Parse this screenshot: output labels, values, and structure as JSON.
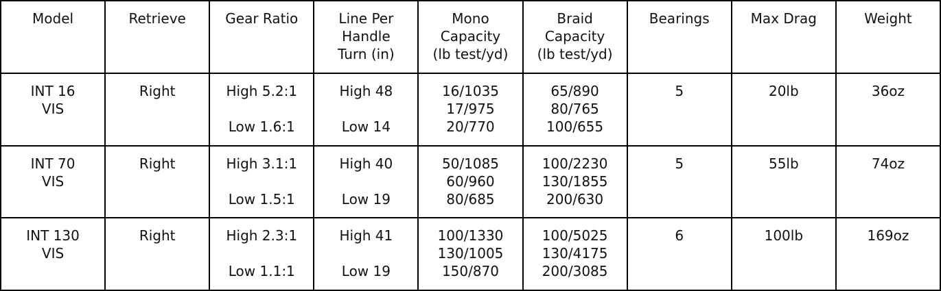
{
  "table": {
    "header": [
      [
        "Model"
      ],
      [
        "Retrieve"
      ],
      [
        "Gear Ratio"
      ],
      [
        "Line Per",
        "Handle",
        "Turn (in)"
      ],
      [
        "Mono",
        "Capacity",
        "(lb test/yd)"
      ],
      [
        "Braid",
        "Capacity",
        "(lb test/yd)"
      ],
      [
        "Bearings"
      ],
      [
        "Max Drag"
      ],
      [
        "Weight"
      ]
    ],
    "rows": [
      [
        [
          "INT 16",
          "VIS"
        ],
        [
          "Right"
        ],
        [
          "High 5.2:1",
          "Low 1.6:1"
        ],
        [
          "High 48",
          "Low 14"
        ],
        [
          "16/1035",
          "17/975",
          "20/770"
        ],
        [
          "65/890",
          "80/765",
          "100/655"
        ],
        [
          "5"
        ],
        [
          "20lb"
        ],
        [
          "36oz"
        ]
      ],
      [
        [
          "INT 70",
          "VIS"
        ],
        [
          "Right"
        ],
        [
          "High 3.1:1",
          "Low 1.5:1"
        ],
        [
          "High 40",
          "Low 19"
        ],
        [
          "50/1085",
          "60/960",
          "80/685"
        ],
        [
          "100/2230",
          "130/1855",
          "200/630"
        ],
        [
          "5"
        ],
        [
          "55lb"
        ],
        [
          "74oz"
        ]
      ],
      [
        [
          "INT 130",
          "VIS"
        ],
        [
          "Right"
        ],
        [
          "High 2.3:1",
          "Low 1.1:1"
        ],
        [
          "High 41",
          "Low 19"
        ],
        [
          "100/1330",
          "130/1005",
          "150/870"
        ],
        [
          "100/5025",
          "130/4175",
          "200/3085"
        ],
        [
          "6"
        ],
        [
          "100lb"
        ],
        [
          "169oz"
        ]
      ]
    ]
  }
}
